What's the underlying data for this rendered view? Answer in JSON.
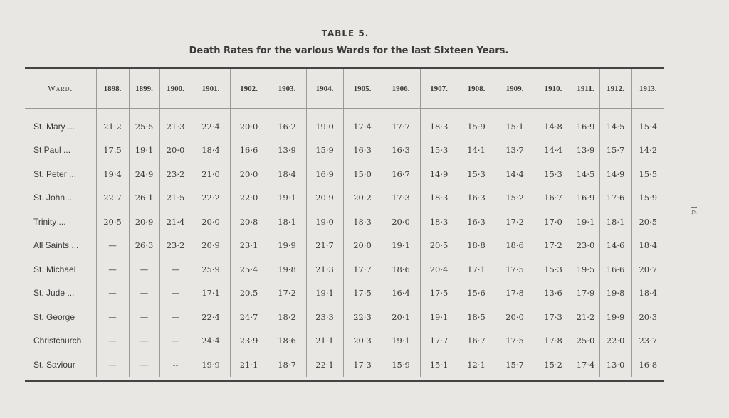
{
  "title": "TABLE 5.",
  "subtitle": "Death Rates for the various Wards for the last Sixteen Years.",
  "page_number": "14",
  "headers": [
    "Ward.",
    "1898.",
    "1899.",
    "1900.",
    "1901.",
    "1902.",
    "1903.",
    "1904.",
    "1905.",
    "1906.",
    "1907.",
    "1908.",
    "1909.",
    "1910.",
    "1911.",
    "1912.",
    "1913."
  ],
  "rows": [
    {
      "ward": "St. Mary ...",
      "values": [
        "21·2",
        "25·5",
        "21·3",
        "22·4",
        "20·0",
        "16·2",
        "19·0",
        "17·4",
        "17·7",
        "18·3",
        "15·9",
        "15·1",
        "14·8",
        "16·9",
        "14·5",
        "15·4"
      ]
    },
    {
      "ward": "St Paul ...",
      "values": [
        "17.5",
        "19·1",
        "20·0",
        "18·4",
        "16·6",
        "13·9",
        "15·9",
        "16·3",
        "16·3",
        "15·3",
        "14·1",
        "13·7",
        "14·4",
        "13·9",
        "15·7",
        "14·2"
      ]
    },
    {
      "ward": "St. Peter ...",
      "values": [
        "19·4",
        "24·9",
        "23·2",
        "21·0",
        "20·0",
        "18·4",
        "16·9",
        "15·0",
        "16·7",
        "14·9",
        "15·3",
        "14·4",
        "15·3",
        "14·5",
        "14·9",
        "15·5"
      ]
    },
    {
      "ward": "St. John ...",
      "values": [
        "22·7",
        "26·1",
        "21·5",
        "22·2",
        "22·0",
        "19·1",
        "20·9",
        "20·2",
        "17·3",
        "18·3",
        "16·3",
        "15·2",
        "16·7",
        "16·9",
        "17·6",
        "15·9"
      ]
    },
    {
      "ward": "Trinity ...",
      "values": [
        "20·5",
        "20·9",
        "21·4",
        "20·0",
        "20·8",
        "18·1",
        "19·0",
        "18·3",
        "20·0",
        "18·3",
        "16·3",
        "17·2",
        "17·0",
        "19·1",
        "18·1",
        "20·5"
      ]
    },
    {
      "ward": "All Saints ...",
      "values": [
        "—",
        "26·3",
        "23·2",
        "20·9",
        "23·1",
        "19·9",
        "21·7",
        "20·0",
        "19·1",
        "20·5",
        "18·8",
        "18·6",
        "17·2",
        "23·0",
        "14·6",
        "18·4"
      ]
    },
    {
      "ward": "St. Michael",
      "values": [
        "—",
        "—",
        "—",
        "25·9",
        "25·4",
        "19·8",
        "21·3",
        "17·7",
        "18·6",
        "20·4",
        "17·1",
        "17·5",
        "15·3",
        "19·5",
        "16·6",
        "20·7"
      ]
    },
    {
      "ward": "St. Jude ...",
      "values": [
        "—",
        "—",
        "—",
        "17·1",
        "20.5",
        "17·2",
        "19·1",
        "17·5",
        "16·4",
        "17·5",
        "15·6",
        "17·8",
        "13·6",
        "17·9",
        "19·8",
        "18·4"
      ]
    },
    {
      "ward": "St. George",
      "values": [
        "—",
        "—",
        "—",
        "22·4",
        "24·7",
        "18·2",
        "23·3",
        "22·3",
        "20·1",
        "19·1",
        "18·5",
        "20·0",
        "17·3",
        "21·2",
        "19·9",
        "20·3"
      ]
    },
    {
      "ward": "Christchurch",
      "values": [
        "—",
        "—",
        "—",
        "24·4",
        "23·9",
        "18·6",
        "21·1",
        "20·3",
        "19·1",
        "17·7",
        "16·7",
        "17·5",
        "17·8",
        "25·0",
        "22·0",
        "23·7"
      ]
    },
    {
      "ward": "St. Saviour",
      "values": [
        "—",
        "—",
        "--",
        "19·9",
        "21·1",
        "18·7",
        "22·1",
        "17·3",
        "15·9",
        "15·1",
        "12·1",
        "15·7",
        "15·2",
        "17·4",
        "13·0",
        "16·8"
      ]
    }
  ]
}
